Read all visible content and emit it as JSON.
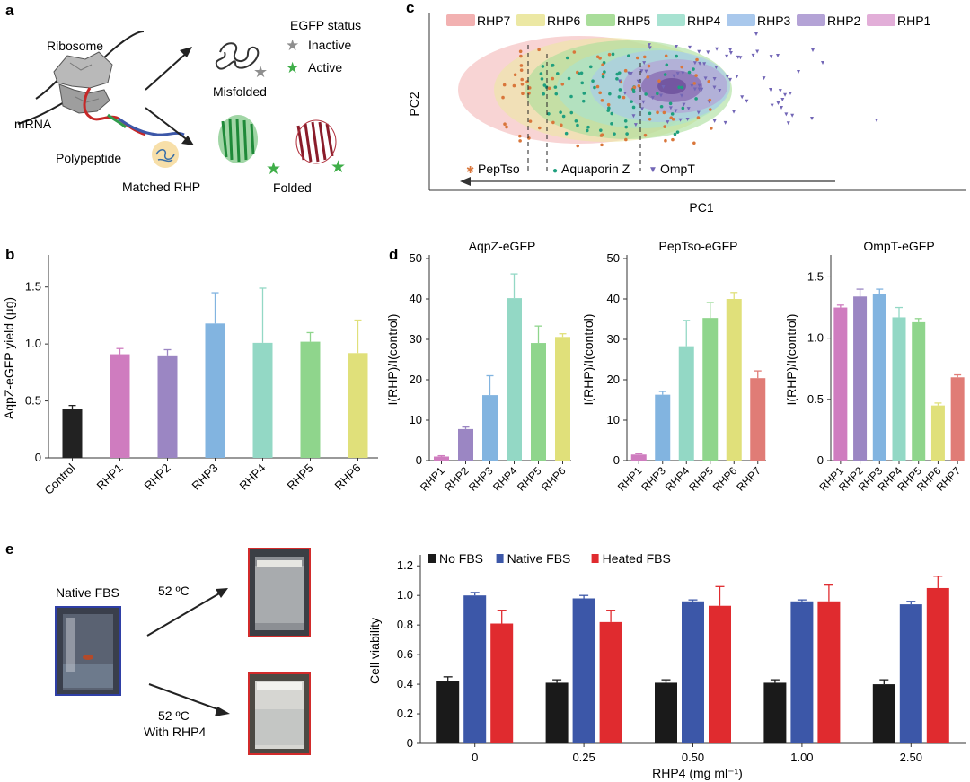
{
  "panels": {
    "a": "a",
    "b": "b",
    "c": "c",
    "d": "d",
    "e": "e"
  },
  "panel_a": {
    "ribosome": "Ribosome",
    "mrna": "mRNA",
    "polypeptide": "Polypeptide",
    "matched_rhp": "Matched RHP",
    "egfp_status": "EGFP status",
    "inactive": "Inactive",
    "active": "Active",
    "misfolded": "Misfolded",
    "folded": "Folded"
  },
  "panel_c": {
    "legend": [
      "RHP7",
      "RHP6",
      "RHP5",
      "RHP4",
      "RHP3",
      "RHP2",
      "RHP1"
    ],
    "legend_colors": [
      "#f2b1b1",
      "#ece8a4",
      "#a9dd9a",
      "#a7e2d1",
      "#a9c8ec",
      "#b4a3d6",
      "#e2aed8"
    ],
    "ylabel": "PC2",
    "xlabel": "PC1",
    "markers": [
      "PepTso",
      "Aquaporin Z",
      "OmpT"
    ],
    "marker_colors": [
      "#d9763b",
      "#1f9f7e",
      "#7266b6"
    ],
    "marker_symbols": [
      "✱",
      "●",
      "▼"
    ]
  },
  "panel_e": {
    "native_fbs": "Native FBS",
    "temp1": "52 ºC",
    "temp2": "52 ºC",
    "with_rhp4": "With RHP4"
  },
  "chart_data": [
    {
      "id": "b",
      "type": "bar",
      "categories": [
        "Control",
        "RHP1",
        "RHP2",
        "RHP3",
        "RHP4",
        "RHP5",
        "RHP6"
      ],
      "values": [
        0.43,
        0.91,
        0.9,
        1.18,
        1.01,
        1.02,
        0.92
      ],
      "errors": [
        0.03,
        0.05,
        0.05,
        0.27,
        0.48,
        0.08,
        0.29
      ],
      "colors": [
        "#222222",
        "#cf7cbf",
        "#9b86c3",
        "#82b4e0",
        "#93d8c5",
        "#8fd58c",
        "#e0e07a"
      ],
      "ylabel": "AqpZ-eGFP yield (µg)",
      "ylim": [
        0,
        1.75
      ],
      "yticks": [
        "0",
        "0.5",
        "1.0",
        "1.5"
      ]
    },
    {
      "id": "d1",
      "type": "bar",
      "title": "AqpZ-eGFP",
      "categories": [
        "RHP1",
        "RHP2",
        "RHP3",
        "RHP4",
        "RHP5",
        "RHP6"
      ],
      "values": [
        1.0,
        7.8,
        16.2,
        40.2,
        29.1,
        30.6
      ],
      "errors": [
        0.2,
        0.5,
        4.8,
        6.0,
        4.2,
        0.8
      ],
      "colors": [
        "#cf7cbf",
        "#9b86c3",
        "#82b4e0",
        "#93d8c5",
        "#8fd58c",
        "#e0e07a"
      ],
      "ylabel": "I(RHP)/I(control)",
      "ylim": [
        0,
        50
      ],
      "yticks": [
        "0",
        "10",
        "20",
        "30",
        "40",
        "50"
      ]
    },
    {
      "id": "d2",
      "type": "bar",
      "title": "PepTso-eGFP",
      "categories": [
        "RHP1",
        "RHP3",
        "RHP4",
        "RHP5",
        "RHP6",
        "RHP7"
      ],
      "values": [
        1.5,
        16.3,
        28.3,
        35.3,
        40.0,
        20.4
      ],
      "errors": [
        0.2,
        0.8,
        6.4,
        3.8,
        1.6,
        1.8
      ],
      "colors": [
        "#cf7cbf",
        "#82b4e0",
        "#93d8c5",
        "#8fd58c",
        "#e0e07a",
        "#e07c76"
      ],
      "ylabel": "I(RHP)/I(control)",
      "ylim": [
        0,
        50
      ],
      "yticks": [
        "0",
        "10",
        "20",
        "30",
        "40",
        "50"
      ]
    },
    {
      "id": "d3",
      "type": "bar",
      "title": "OmpT-eGFP",
      "categories": [
        "RHP1",
        "RHP2",
        "RHP3",
        "RHP4",
        "RHP5",
        "RHP6",
        "RHP7"
      ],
      "values": [
        1.25,
        1.34,
        1.36,
        1.17,
        1.13,
        0.45,
        0.68
      ],
      "errors": [
        0.02,
        0.06,
        0.04,
        0.08,
        0.03,
        0.02,
        0.02
      ],
      "colors": [
        "#cf7cbf",
        "#9b86c3",
        "#82b4e0",
        "#93d8c5",
        "#8fd58c",
        "#e0e07a",
        "#e07c76"
      ],
      "ylabel": "I(RHP)/I(control)",
      "ylim": [
        0,
        1.65
      ],
      "yticks": [
        "0",
        "0.5",
        "1.0",
        "1.5"
      ]
    },
    {
      "id": "e",
      "type": "bar",
      "categories": [
        "0",
        "0.25",
        "0.50",
        "1.00",
        "2.50"
      ],
      "series": [
        {
          "name": "No FBS",
          "color": "#1a1a1a",
          "values": [
            0.42,
            0.41,
            0.41,
            0.41,
            0.4
          ],
          "errors": [
            0.03,
            0.02,
            0.02,
            0.02,
            0.03
          ]
        },
        {
          "name": "Native FBS",
          "color": "#3c57a8",
          "values": [
            1.0,
            0.98,
            0.96,
            0.96,
            0.94
          ],
          "errors": [
            0.02,
            0.02,
            0.01,
            0.01,
            0.02
          ]
        },
        {
          "name": "Heated FBS",
          "color": "#e02b2f",
          "values": [
            0.81,
            0.82,
            0.93,
            0.96,
            1.05
          ],
          "errors": [
            0.09,
            0.08,
            0.13,
            0.11,
            0.08
          ]
        }
      ],
      "ylabel": "Cell viability",
      "xlabel": "RHP4 (mg ml⁻¹)",
      "ylim": [
        0,
        1.25
      ],
      "yticks": [
        "0",
        "0.2",
        "0.4",
        "0.6",
        "0.8",
        "1.0",
        "1.2"
      ]
    }
  ]
}
